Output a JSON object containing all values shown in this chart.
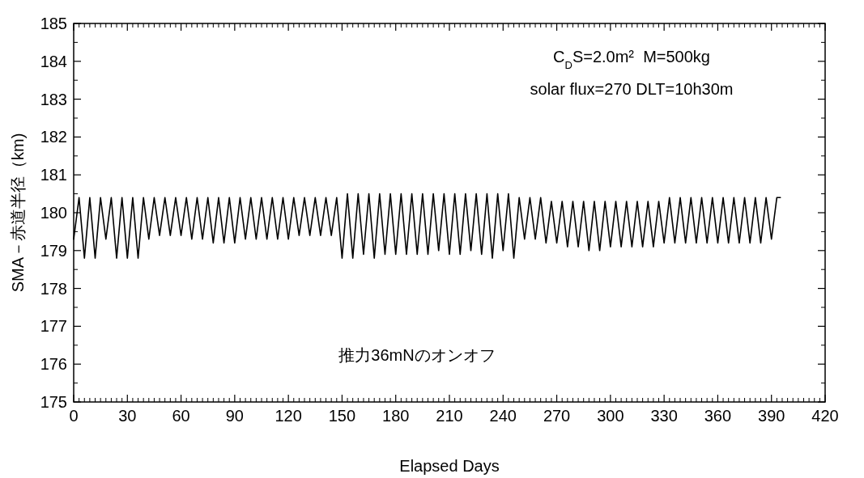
{
  "chart_data": {
    "type": "line",
    "xlabel": "Elapsed Days",
    "ylabel": "SMA－赤道半径（km)",
    "annotations": [
      "C$_{D}$S=2.0m²  M=500kg",
      "solar flux=270 DLT=10h30m",
      "推力36mNのオンオフ"
    ],
    "xlim": [
      0,
      420
    ],
    "xticks": [
      0,
      30,
      60,
      90,
      120,
      150,
      180,
      210,
      240,
      270,
      300,
      330,
      360,
      390,
      420
    ],
    "ylim": [
      175,
      185
    ],
    "yticks": [
      175,
      176,
      177,
      178,
      179,
      180,
      181,
      182,
      183,
      184,
      185
    ],
    "grid": false,
    "marker": "none",
    "line_style": "solid",
    "series": [
      {
        "color": "#000000",
        "x": [
          0,
          3,
          6,
          9,
          12,
          15,
          18,
          21,
          24,
          27,
          30,
          33,
          36,
          39,
          42,
          45,
          48,
          51,
          54,
          57,
          60,
          63,
          66,
          69,
          72,
          75,
          78,
          81,
          84,
          87,
          90,
          93,
          96,
          99,
          102,
          105,
          108,
          111,
          114,
          117,
          120,
          123,
          126,
          129,
          132,
          135,
          138,
          141,
          144,
          147,
          150,
          153,
          156,
          159,
          162,
          165,
          168,
          171,
          174,
          177,
          180,
          183,
          186,
          189,
          192,
          195,
          198,
          201,
          204,
          207,
          210,
          213,
          216,
          219,
          222,
          225,
          228,
          231,
          234,
          237,
          240,
          243,
          246,
          249,
          252,
          255,
          258,
          261,
          264,
          267,
          270,
          273,
          276,
          279,
          282,
          285,
          288,
          291,
          294,
          297,
          300,
          303,
          306,
          309,
          312,
          315,
          318,
          321,
          324,
          327,
          330,
          333,
          336,
          339,
          342,
          345,
          348,
          351,
          354,
          357,
          360,
          363,
          366,
          369,
          372,
          375,
          378,
          381,
          384,
          387,
          390,
          393,
          395
        ],
        "values": [
          179.3,
          180.4,
          178.8,
          180.4,
          178.8,
          180.4,
          179.3,
          180.4,
          178.8,
          180.4,
          178.8,
          180.4,
          178.8,
          180.4,
          179.3,
          180.4,
          179.4,
          180.4,
          179.4,
          180.4,
          179.4,
          180.4,
          179.3,
          180.4,
          179.3,
          180.4,
          179.2,
          180.4,
          179.2,
          180.4,
          179.2,
          180.4,
          179.3,
          180.4,
          179.3,
          180.4,
          179.3,
          180.4,
          179.3,
          180.4,
          179.3,
          180.4,
          179.4,
          180.4,
          179.4,
          180.4,
          179.4,
          180.4,
          179.4,
          180.4,
          178.8,
          180.5,
          178.8,
          180.5,
          178.9,
          180.5,
          178.8,
          180.5,
          178.9,
          180.5,
          178.9,
          180.5,
          178.9,
          180.5,
          178.9,
          180.5,
          178.9,
          180.5,
          179.0,
          180.5,
          178.9,
          180.5,
          178.9,
          180.5,
          179.0,
          180.5,
          178.9,
          180.5,
          178.8,
          180.5,
          179.0,
          180.5,
          178.8,
          180.4,
          179.3,
          180.4,
          179.3,
          180.4,
          179.2,
          180.3,
          179.2,
          180.3,
          179.1,
          180.3,
          179.1,
          180.3,
          179.0,
          180.3,
          179.0,
          180.3,
          179.1,
          180.3,
          179.1,
          180.3,
          179.1,
          180.3,
          179.1,
          180.3,
          179.1,
          180.3,
          179.2,
          180.4,
          179.2,
          180.4,
          179.2,
          180.4,
          179.2,
          180.4,
          179.2,
          180.4,
          179.2,
          180.4,
          179.2,
          180.4,
          179.2,
          180.4,
          179.2,
          180.4,
          179.2,
          180.4,
          179.3,
          180.4,
          180.4
        ]
      }
    ]
  }
}
